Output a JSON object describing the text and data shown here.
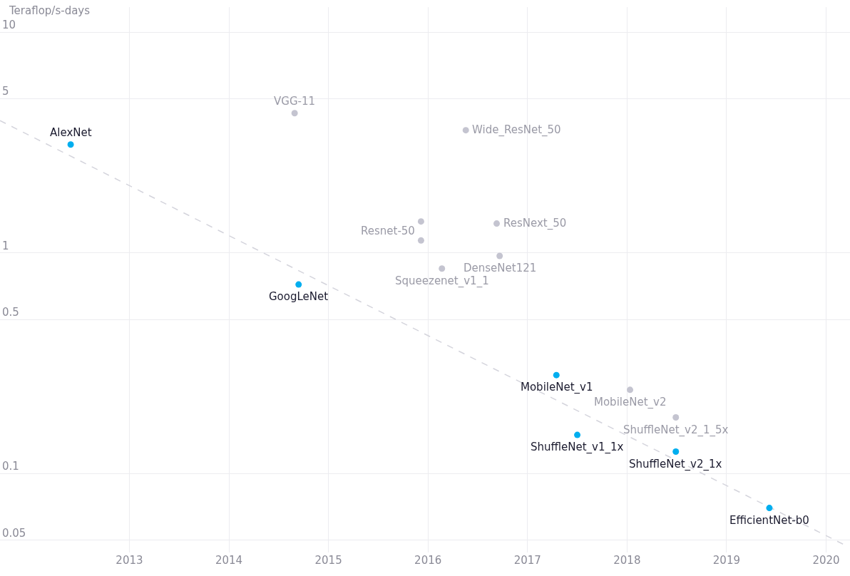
{
  "chart_data": {
    "type": "scatter",
    "ylabel": "Teraflop/s-days",
    "log": "y",
    "grid": true,
    "marker": "circle",
    "xlim": [
      2011.7,
      2020.24
    ],
    "xticks": [
      2013,
      2014,
      2015,
      2016,
      2017,
      2018,
      2019,
      2020
    ],
    "ylim": [
      0.044,
      13
    ],
    "yticks": [
      0.05,
      0.1,
      0.5,
      1,
      5,
      10
    ],
    "series": [
      {
        "color": "#c4c4d0",
        "x": [
          2014.66,
          2016.38,
          2015.93,
          2015.93,
          2016.69,
          2016.72,
          2016.14,
          2018.03,
          2018.49
        ],
        "values": [
          4.3,
          3.6,
          1.39,
          1.14,
          1.36,
          0.97,
          0.85,
          0.24,
          0.18
        ]
      },
      {
        "color": "#00aeef",
        "x": [
          2012.41,
          2014.7,
          2017.29,
          2017.5,
          2018.49,
          2019.43
        ],
        "values": [
          3.1,
          0.72,
          0.28,
          0.15,
          0.126,
          0.07
        ]
      },
      {
        "type": "line",
        "marker": "none",
        "line_style": "dashed",
        "color": "#d4d4dc",
        "x": [
          2011.7,
          2020.17
        ],
        "values": [
          3.98,
          0.048
        ]
      }
    ],
    "annotations": [
      {
        "text": "VGG-11",
        "x": 2014.66,
        "y": 4.3
      },
      {
        "text": "Wide_ResNet_50",
        "x": 2016.38,
        "y": 3.6
      },
      {
        "text": "Resnet-50",
        "x": 2015.93,
        "y": 1.39
      },
      {
        "text": "ResNext_50",
        "x": 2016.69,
        "y": 1.36
      },
      {
        "text": "DenseNet121",
        "x": 2016.72,
        "y": 0.97
      },
      {
        "text": "Squeezenet_v1_1",
        "x": 2016.14,
        "y": 0.85
      },
      {
        "text": "MobileNet_v2",
        "x": 2018.03,
        "y": 0.24
      },
      {
        "text": "ShuffleNet_v2_1_5x",
        "x": 2018.49,
        "y": 0.18
      },
      {
        "text": "AlexNet",
        "x": 2012.41,
        "y": 3.1
      },
      {
        "text": "GoogLeNet",
        "x": 2014.7,
        "y": 0.72
      },
      {
        "text": "MobileNet_v1",
        "x": 2017.29,
        "y": 0.28
      },
      {
        "text": "ShuffleNet_v1_1x",
        "x": 2017.5,
        "y": 0.15
      },
      {
        "text": "ShuffleNet_v2_1x",
        "x": 2018.49,
        "y": 0.126
      },
      {
        "text": "EfficientNet-b0",
        "x": 2019.43,
        "y": 0.07
      }
    ]
  }
}
